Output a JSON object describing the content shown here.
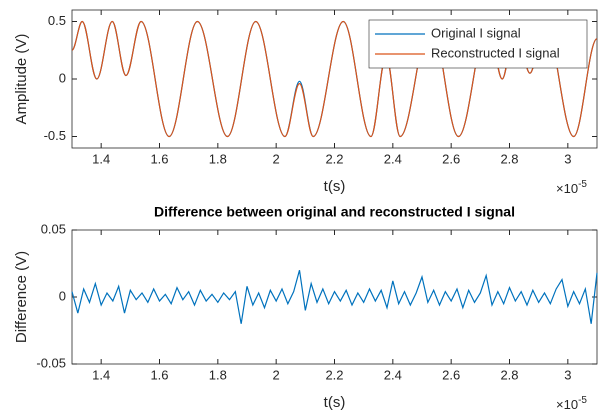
{
  "chart_data": [
    {
      "type": "line",
      "xlabel": "t(s)",
      "ylabel": "Amplitude (V)",
      "x_multiplier": "×10",
      "x_multiplier_exponent": "-5",
      "smooth": true,
      "legend": "northeast",
      "xlim": [
        1.3,
        3.1
      ],
      "ylim": [
        -0.6,
        0.6
      ],
      "xticks": [
        1.4,
        1.6,
        1.8,
        2,
        2.2,
        2.4,
        2.6,
        2.8,
        3
      ],
      "yticks": [
        -0.5,
        0,
        0.5
      ],
      "x": [
        1.3,
        1.335,
        1.385,
        1.438,
        1.485,
        1.537,
        1.633,
        1.73,
        1.833,
        1.93,
        2.03,
        2.08,
        2.127,
        2.23,
        2.325,
        2.377,
        2.425,
        2.53,
        2.625,
        2.727,
        2.775,
        2.82,
        2.87,
        2.92,
        3.02,
        3.1
      ],
      "series": [
        {
          "name": "Original I signal",
          "color": "#0072bd",
          "values": [
            0.25,
            0.5,
            0,
            0.5,
            0.03,
            0.5,
            -0.5,
            0.5,
            -0.5,
            0.5,
            -0.5,
            -0.02,
            -0.5,
            0.5,
            -0.5,
            0.2,
            -0.5,
            0.5,
            -0.5,
            0.5,
            0,
            0.5,
            0.05,
            0.5,
            -0.5,
            0.35
          ]
        },
        {
          "name": "Reconstructed I signal",
          "color": "#d95319",
          "values": [
            0.25,
            0.5,
            0,
            0.5,
            0.03,
            0.5,
            -0.5,
            0.5,
            -0.5,
            0.5,
            -0.5,
            -0.04,
            -0.5,
            0.5,
            -0.5,
            0.2,
            -0.5,
            0.5,
            -0.5,
            0.5,
            0,
            0.5,
            0.05,
            0.5,
            -0.5,
            0.35
          ]
        }
      ]
    },
    {
      "type": "line",
      "title": "Difference between original and reconstructed I signal",
      "xlabel": "t(s)",
      "ylabel": "Difference (V)",
      "x_multiplier": "×10",
      "x_multiplier_exponent": "-5",
      "smooth": false,
      "xlim": [
        1.3,
        3.1
      ],
      "ylim": [
        -0.05,
        0.05
      ],
      "xticks": [
        1.4,
        1.6,
        1.8,
        2,
        2.2,
        2.4,
        2.6,
        2.8,
        3
      ],
      "yticks": [
        -0.05,
        0,
        0.05
      ],
      "x": [
        1.3,
        1.32,
        1.34,
        1.36,
        1.38,
        1.4,
        1.42,
        1.44,
        1.46,
        1.48,
        1.5,
        1.52,
        1.54,
        1.56,
        1.58,
        1.6,
        1.62,
        1.64,
        1.66,
        1.68,
        1.7,
        1.72,
        1.74,
        1.76,
        1.78,
        1.8,
        1.82,
        1.84,
        1.86,
        1.88,
        1.9,
        1.92,
        1.94,
        1.96,
        1.98,
        2,
        2.02,
        2.04,
        2.06,
        2.08,
        2.1,
        2.12,
        2.14,
        2.16,
        2.18,
        2.2,
        2.22,
        2.24,
        2.26,
        2.28,
        2.3,
        2.32,
        2.34,
        2.36,
        2.38,
        2.4,
        2.42,
        2.44,
        2.46,
        2.48,
        2.5,
        2.52,
        2.54,
        2.56,
        2.58,
        2.6,
        2.62,
        2.64,
        2.66,
        2.68,
        2.7,
        2.72,
        2.74,
        2.76,
        2.78,
        2.8,
        2.82,
        2.84,
        2.86,
        2.88,
        2.9,
        2.92,
        2.94,
        2.96,
        2.98,
        3,
        3.02,
        3.04,
        3.06,
        3.08,
        3.1
      ],
      "series": [
        {
          "name": "Difference",
          "color": "#0072bd",
          "values": [
            0.004,
            -0.012,
            0.006,
            -0.004,
            0.01,
            -0.006,
            0.003,
            -0.003,
            0.008,
            -0.012,
            0.005,
            -0.002,
            0.003,
            -0.004,
            0.006,
            -0.003,
            0.002,
            -0.005,
            0.007,
            -0.002,
            0.004,
            -0.006,
            0.005,
            -0.003,
            0.002,
            -0.004,
            0.003,
            -0.002,
            0.004,
            -0.02,
            0.008,
            -0.006,
            0.003,
            -0.008,
            0.005,
            -0.003,
            0.006,
            -0.005,
            0.004,
            0.02,
            -0.01,
            0.01,
            -0.004,
            0.006,
            -0.005,
            0.004,
            -0.003,
            0.005,
            -0.006,
            0.003,
            -0.004,
            0.006,
            -0.003,
            0.005,
            -0.008,
            0.012,
            -0.005,
            0.004,
            -0.006,
            0.003,
            0.015,
            -0.004,
            0.005,
            -0.006,
            0.004,
            -0.003,
            0.006,
            -0.008,
            0.005,
            -0.004,
            0.003,
            0.016,
            -0.006,
            0.004,
            -0.005,
            0.007,
            -0.003,
            0.004,
            -0.006,
            0.005,
            -0.004,
            0.003,
            -0.005,
            0.006,
            0.013,
            -0.007,
            0.004,
            -0.005,
            0.006,
            -0.02,
            0.018
          ]
        }
      ]
    }
  ]
}
